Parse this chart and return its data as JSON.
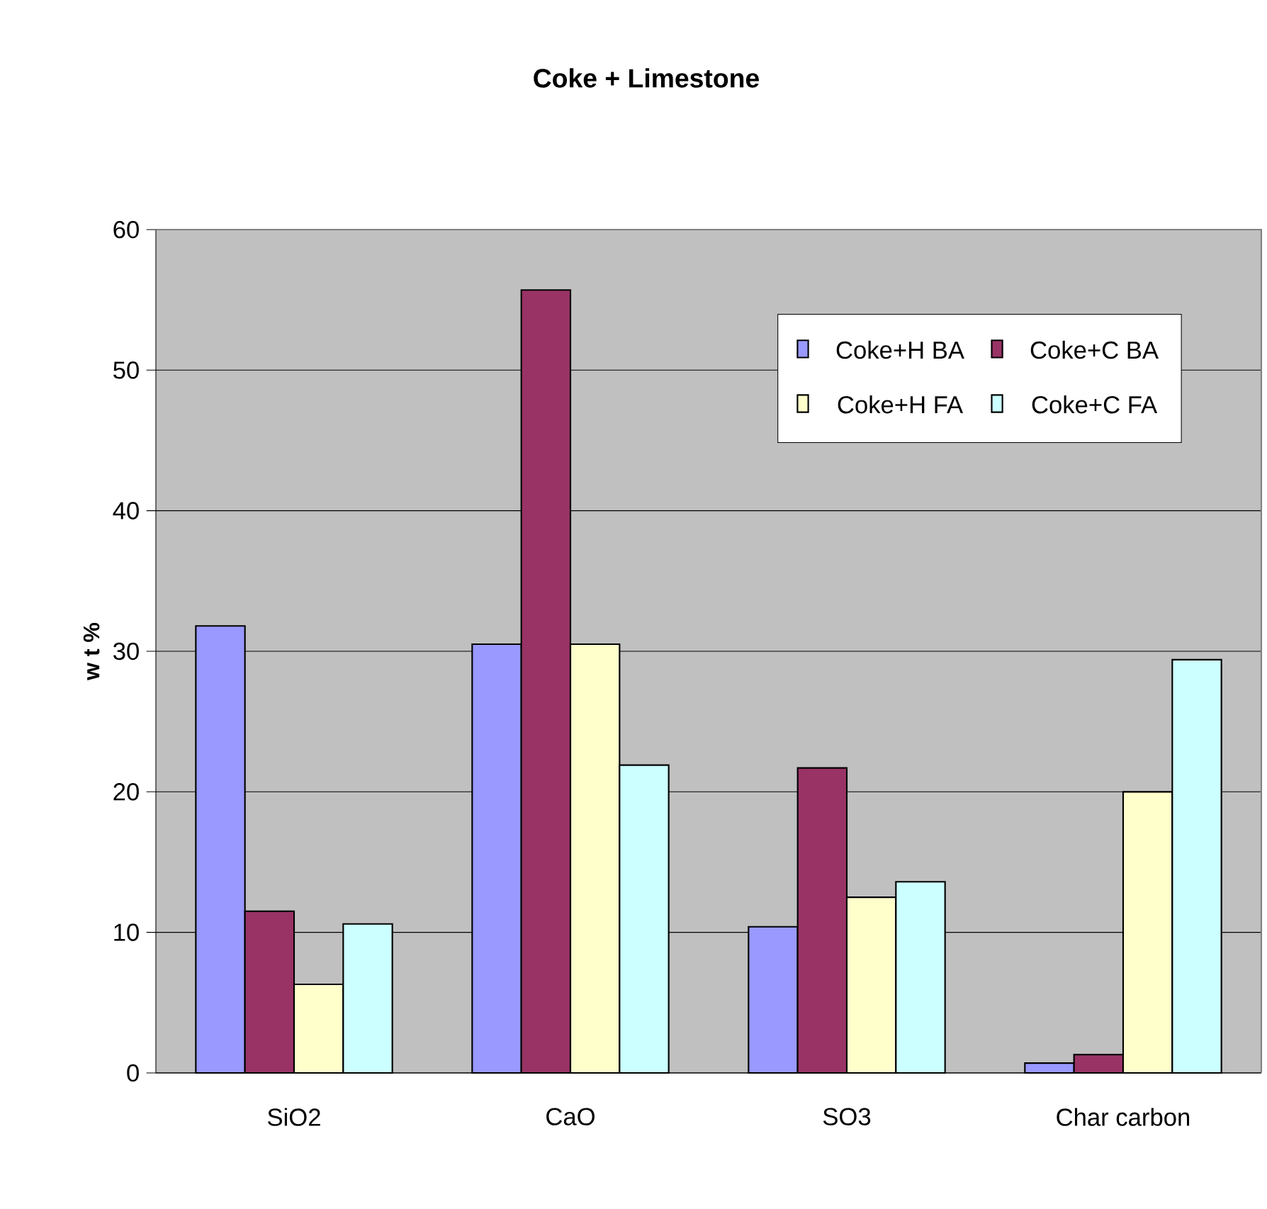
{
  "chart_data": {
    "type": "bar",
    "title": "Coke + Limestone",
    "ylabel": "w t %",
    "categories": [
      "SiO2",
      "CaO",
      "SO3",
      "Char carbon"
    ],
    "series": [
      {
        "name": "Coke+H BA",
        "color": "#9999ff",
        "values": [
          31.8,
          30.5,
          10.4,
          0.7
        ]
      },
      {
        "name": "Coke+C BA",
        "color": "#993366",
        "values": [
          11.5,
          55.7,
          21.7,
          1.3
        ]
      },
      {
        "name": "Coke+H FA",
        "color": "#ffffcc",
        "values": [
          6.3,
          30.5,
          12.5,
          20.0
        ]
      },
      {
        "name": "Coke+C FA",
        "color": "#ccffff",
        "values": [
          10.6,
          21.9,
          13.6,
          29.4
        ]
      }
    ],
    "ylim": [
      0,
      60
    ],
    "yticks": [
      0,
      10,
      20,
      30,
      40,
      50,
      60
    ],
    "grid": "y",
    "legend": "top right"
  }
}
